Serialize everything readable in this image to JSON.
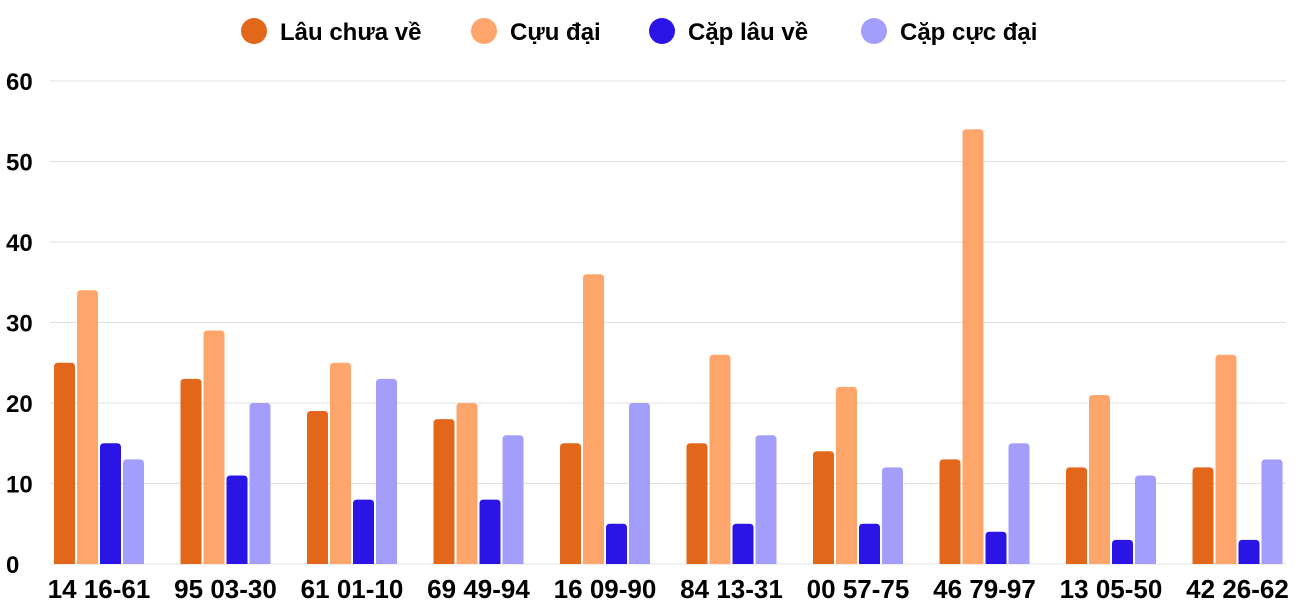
{
  "chart_data": {
    "type": "bar",
    "categories": [
      "14 16-61",
      "95 03-30",
      "61 01-10",
      "69 49-94",
      "16 09-90",
      "84 13-31",
      "00 57-75",
      "46 79-97",
      "13 05-50",
      "42 26-62"
    ],
    "series": [
      {
        "name": "Lâu chưa về",
        "color": "#e2671b",
        "values": [
          25,
          23,
          19,
          18,
          15,
          15,
          14,
          13,
          12,
          12
        ]
      },
      {
        "name": "Cựu đại",
        "color": "#fea56b",
        "values": [
          34,
          29,
          25,
          20,
          36,
          26,
          22,
          54,
          21,
          26
        ]
      },
      {
        "name": "Cặp lâu về",
        "color": "#2a14e6",
        "values": [
          15,
          11,
          8,
          8,
          5,
          5,
          5,
          4,
          3,
          3
        ]
      },
      {
        "name": "Cặp cực đại",
        "color": "#a39dfb",
        "values": [
          13,
          20,
          23,
          16,
          20,
          16,
          12,
          15,
          11,
          13
        ]
      }
    ],
    "yticks": [
      0,
      10,
      20,
      30,
      40,
      50,
      60
    ],
    "ylim": [
      0,
      60
    ],
    "grid": true,
    "legend_position": "top"
  }
}
